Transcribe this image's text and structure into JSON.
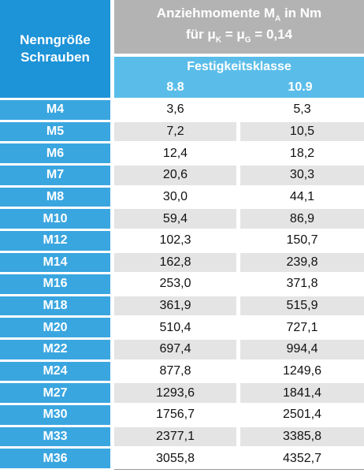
{
  "header": {
    "row_label": [
      "Nenngröße",
      "Schrauben"
    ],
    "title": [
      {
        "text": "Anziehmomente M",
        "sub": "A",
        "after": "in Nm"
      },
      {
        "text": "für μ",
        "sub": "K",
        "after": "= μ",
        "sub2": "G",
        "after2": "= 0,14"
      }
    ],
    "class_label": "Festigkeitsklasse",
    "classes": [
      "8.8",
      "10.9"
    ]
  },
  "rows": [
    [
      "M4",
      "3,6",
      "5,3"
    ],
    [
      "M5",
      "7,2",
      "10,5"
    ],
    [
      "M6",
      "12,4",
      "18,2"
    ],
    [
      "M7",
      "20,6",
      "30,3"
    ],
    [
      "M8",
      "30,0",
      "44,1"
    ],
    [
      "M10",
      "59,4",
      "86,9"
    ],
    [
      "M12",
      "102,3",
      "150,7"
    ],
    [
      "M14",
      "162,8",
      "239,8"
    ],
    [
      "M16",
      "253,0",
      "371,8"
    ],
    [
      "M18",
      "361,9",
      "515,9"
    ],
    [
      "M20",
      "510,4",
      "727,1"
    ],
    [
      "M22",
      "697,4",
      "994,4"
    ],
    [
      "M24",
      "877,8",
      "1249,6"
    ],
    [
      "M27",
      "1293,6",
      "1841,4"
    ],
    [
      "M30",
      "1756,7",
      "2501,4"
    ],
    [
      "M33",
      "2377,1",
      "3385,8"
    ],
    [
      "M36",
      "3055,8",
      "4352,7"
    ]
  ]
}
